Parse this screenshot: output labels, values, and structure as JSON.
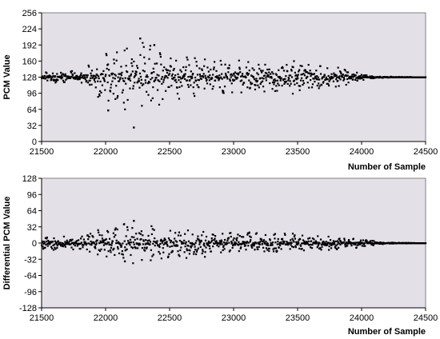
{
  "chart_data": [
    {
      "type": "scatter",
      "title": "",
      "xlabel": "Number of Sample",
      "ylabel": "PCM Value",
      "xlim": [
        21500,
        24500
      ],
      "ylim": [
        0,
        256
      ],
      "x_ticks": [
        21500,
        22000,
        22500,
        23000,
        23500,
        24000,
        24500
      ],
      "y_ticks": [
        0,
        32,
        64,
        96,
        128,
        160,
        192,
        224,
        256
      ],
      "grid": false,
      "legend": "none",
      "marker_color": "#000000",
      "plot_background": "#e4e0e8",
      "baseline": 128,
      "envelope": [
        {
          "x": 21500,
          "amplitude": 10
        },
        {
          "x": 21800,
          "amplitude": 14
        },
        {
          "x": 22000,
          "amplitude": 50
        },
        {
          "x": 22200,
          "amplitude": 70
        },
        {
          "x": 22300,
          "amplitude": 72
        },
        {
          "x": 22500,
          "amplitude": 55
        },
        {
          "x": 22700,
          "amplitude": 40
        },
        {
          "x": 23000,
          "amplitude": 38
        },
        {
          "x": 23300,
          "amplitude": 36
        },
        {
          "x": 23600,
          "amplitude": 32
        },
        {
          "x": 23800,
          "amplitude": 22
        },
        {
          "x": 24000,
          "amplitude": 8
        },
        {
          "x": 24100,
          "amplitude": 2
        },
        {
          "x": 24500,
          "amplitude": 0
        }
      ],
      "marked_points": [
        {
          "x": 22220,
          "y": 28
        },
        {
          "x": 22270,
          "y": 205
        },
        {
          "x": 22020,
          "y": 62
        },
        {
          "x": 22380,
          "y": 192
        }
      ]
    },
    {
      "type": "scatter",
      "title": "",
      "xlabel": "Number of Sample",
      "ylabel": "Differential PCM Value",
      "xlim": [
        21500,
        24500
      ],
      "ylim": [
        -128,
        128
      ],
      "x_ticks": [
        21500,
        22000,
        22500,
        23000,
        23500,
        24000,
        24500
      ],
      "y_ticks": [
        -128,
        -96,
        -64,
        -32,
        0,
        32,
        64,
        96,
        128
      ],
      "grid": false,
      "legend": "none",
      "marker_color": "#000000",
      "plot_background": "#e4e0e8",
      "baseline": 0,
      "envelope": [
        {
          "x": 21500,
          "amplitude": 14
        },
        {
          "x": 21800,
          "amplitude": 16
        },
        {
          "x": 22000,
          "amplitude": 32
        },
        {
          "x": 22200,
          "amplitude": 42
        },
        {
          "x": 22400,
          "amplitude": 36
        },
        {
          "x": 22700,
          "amplitude": 30
        },
        {
          "x": 23000,
          "amplitude": 22
        },
        {
          "x": 23400,
          "amplitude": 20
        },
        {
          "x": 23700,
          "amplitude": 16
        },
        {
          "x": 24000,
          "amplitude": 9
        },
        {
          "x": 24150,
          "amplitude": 2
        },
        {
          "x": 24500,
          "amplitude": 0
        }
      ],
      "marked_points": [
        {
          "x": 22220,
          "y": 44
        },
        {
          "x": 22150,
          "y": -36
        }
      ]
    }
  ]
}
